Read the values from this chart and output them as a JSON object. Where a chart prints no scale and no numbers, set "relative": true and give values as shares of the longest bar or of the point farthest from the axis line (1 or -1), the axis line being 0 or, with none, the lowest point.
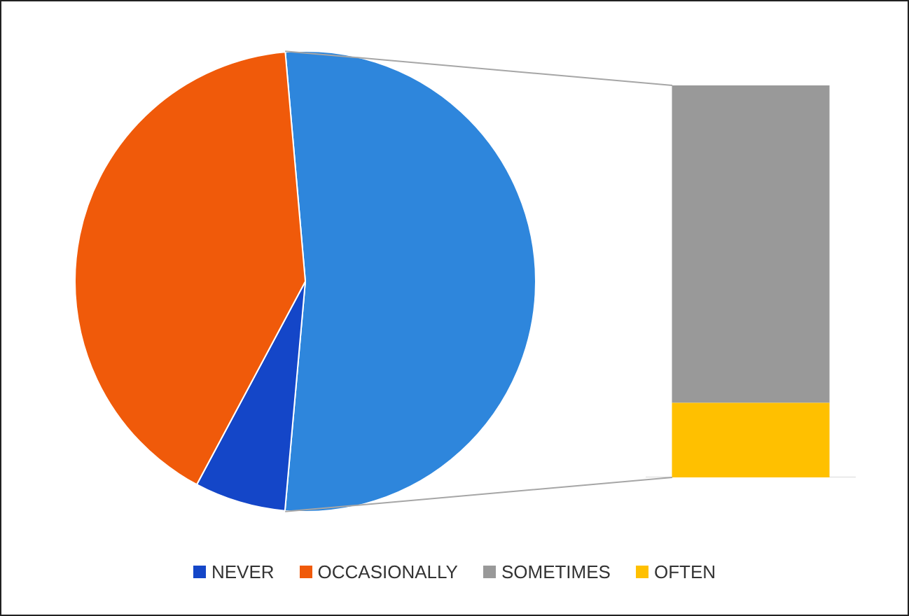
{
  "chart_data": [
    {
      "type": "pie",
      "categories": [
        null,
        "NEVER",
        "OCCASIONALLY"
      ],
      "values": [
        52.8,
        6.4,
        40.8
      ],
      "colors": [
        "#2e86dc",
        "#1446c8",
        "#f05a0a"
      ],
      "legend": "bottom"
    },
    {
      "type": "bar",
      "stacked": true,
      "relative": true,
      "categories": [
        null
      ],
      "legend": "bottom",
      "series": [
        {
          "name": "OFTEN",
          "color": "#ffc000",
          "values": [
            0.19
          ]
        },
        {
          "name": "SOMETIMES",
          "color": "#999999",
          "values": [
            0.81
          ]
        }
      ]
    }
  ]
}
